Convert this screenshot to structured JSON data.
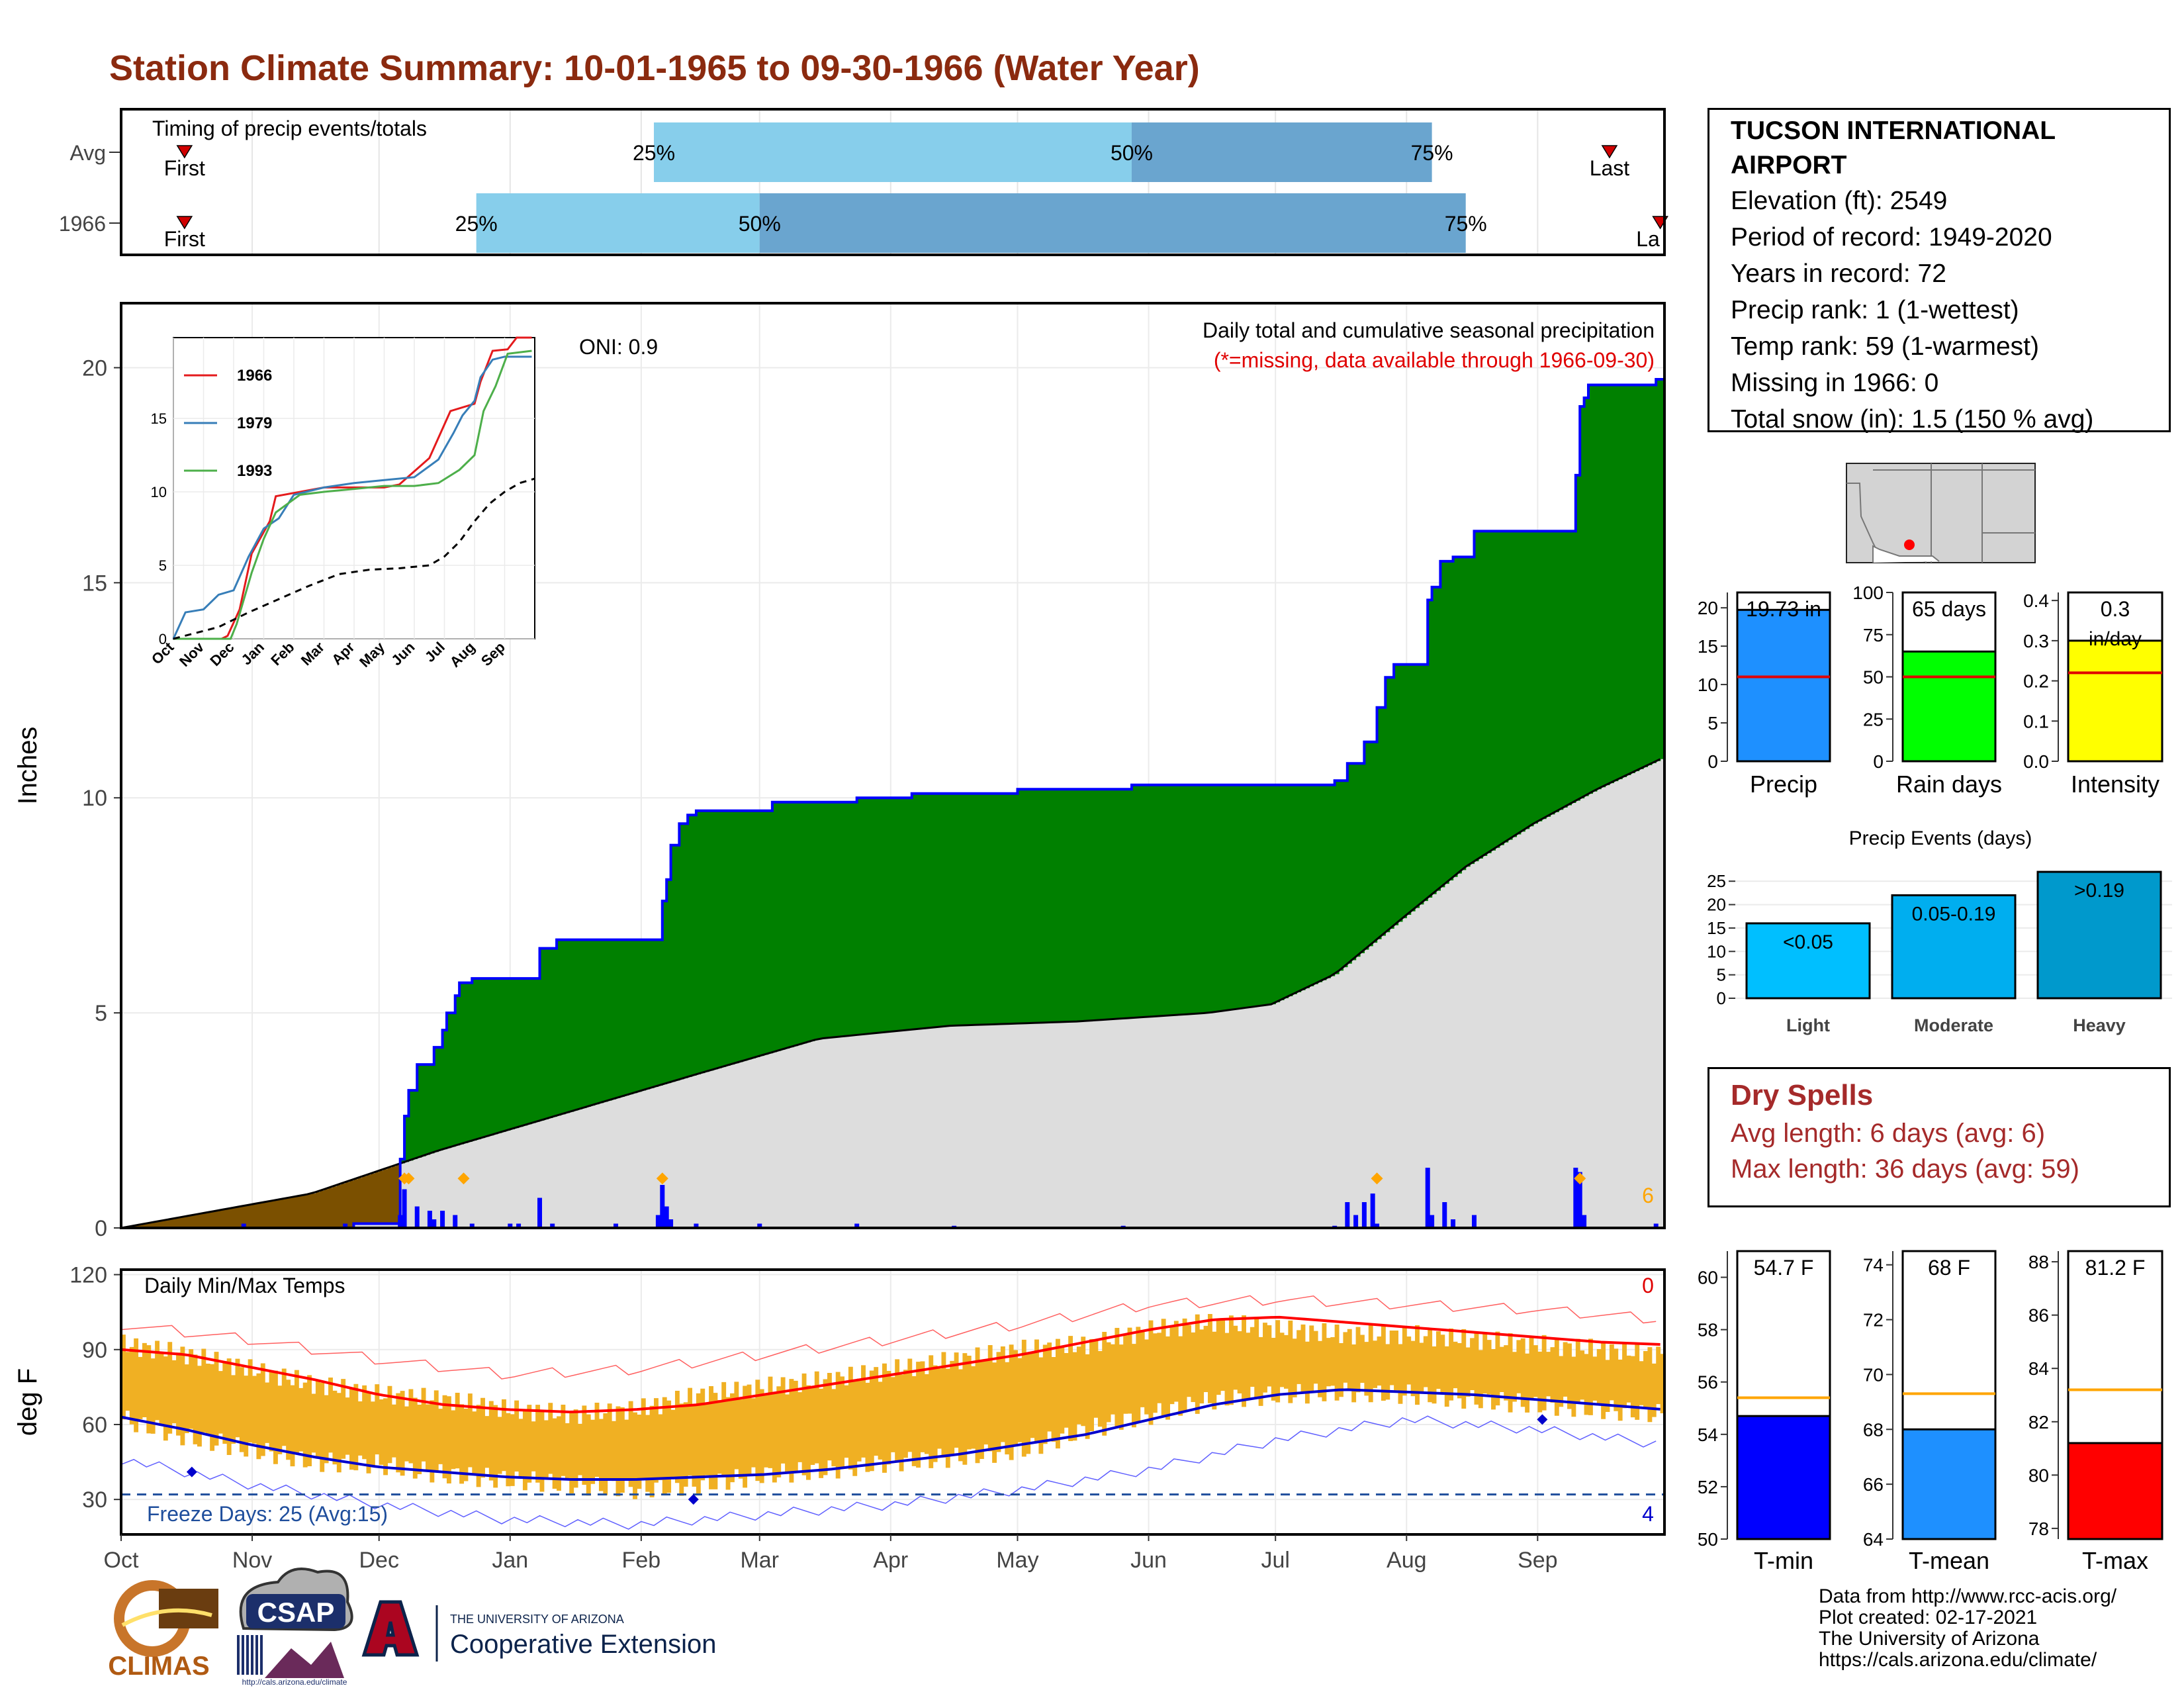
{
  "page_title": "Station Climate Summary: 10-01-1965 to 09-30-1966 (Water Year)",
  "station": {
    "name": "TUCSON INTERNATIONAL AIRPORT",
    "elevation": "Elevation (ft): 2549",
    "period": "Period of record: 1949-2020",
    "years": "Years in record: 72",
    "precip_rank": "Precip rank: 1 (1-wettest)",
    "temp_rank": "Temp rank: 59 (1-warmest)",
    "missing": "Missing in 1966: 0",
    "snow": "Total snow (in): 1.5 (150 % avg)"
  },
  "dry_spells": {
    "title": "Dry Spells",
    "avg": "Avg length: 6 days (avg: 6)",
    "max": "Max length: 36 days (avg: 59)"
  },
  "credits": [
    "Data from http://www.rcc-acis.org/",
    "Plot created: 02-17-2021",
    "The University of Arizona",
    "https://cals.arizona.edu/climate/"
  ],
  "logos": {
    "climas": "CLIMAS",
    "csap": "CSAP",
    "csap_url": "http://cals.arizona.edu/climate",
    "ua_small": "THE UNIVERSITY OF ARIZONA",
    "ua_big": "Cooperative Extension"
  },
  "colors": {
    "title": "#8b2a0f",
    "precip_cum": "#008000",
    "precip_deficit": "#7b5000",
    "avg_cum": "#dddddd",
    "daily_bar": "#0000ff",
    "temp_bar": "#f0b023",
    "tmax": "#ff0000",
    "tmin": "#0000cc",
    "dry": "#a52a2a"
  },
  "chart_data": [
    {
      "id": "timing",
      "type": "bar",
      "title": "Timing of precip events/totals",
      "rows": [
        {
          "label": "Avg",
          "first": "1965-10-16",
          "p25": "1966-02-04",
          "p50": "1966-05-28",
          "p75": "1966-08-07",
          "last": "1966-09-18",
          "first_label": "First",
          "last_label": "Last"
        },
        {
          "label": "1966",
          "first": "1965-10-16",
          "p25": "1965-12-24",
          "p50": "1966-03-01",
          "p75": "1966-08-15",
          "last": "1966-09-30",
          "first_label": "First",
          "last_label": "La"
        }
      ],
      "pct_labels": [
        "25%",
        "50%",
        "75%"
      ]
    },
    {
      "id": "precip",
      "type": "area",
      "title": "Daily total and cumulative seasonal precipitation",
      "subtitle": "(*=missing, data available through 1966-09-30)",
      "ylabel": "Inches",
      "oni": "ONI: 0.9",
      "ylim": [
        0,
        21.5
      ],
      "yticks": [
        0,
        5,
        10,
        15,
        20
      ],
      "xticks": [
        "Oct",
        "Nov",
        "Dec",
        "Jan",
        "Feb",
        "Mar",
        "Apr",
        "May",
        "Jun",
        "Jul",
        "Aug",
        "Sep"
      ],
      "snow_count": "6",
      "series": [
        {
          "name": "1966",
          "x": [
            "1965-10-01",
            "1965-11-25",
            "1965-12-06",
            "1965-12-07",
            "1965-12-08",
            "1965-12-10",
            "1965-12-14",
            "1965-12-16",
            "1965-12-17",
            "1965-12-19",
            "1965-12-20",
            "1965-12-23",
            "1965-12-25",
            "1966-01-08",
            "1966-01-12",
            "1966-02-06",
            "1966-02-07",
            "1966-02-08",
            "1966-02-10",
            "1966-02-12",
            "1966-02-14",
            "1966-02-19",
            "1966-03-04",
            "1966-03-24",
            "1966-04-06",
            "1966-05-01",
            "1966-05-28",
            "1966-07-15",
            "1966-07-18",
            "1966-07-22",
            "1966-07-25",
            "1966-07-27",
            "1966-07-29",
            "1966-08-06",
            "1966-08-07",
            "1966-08-09",
            "1966-08-12",
            "1966-08-17",
            "1966-09-10",
            "1966-09-11",
            "1966-09-12",
            "1966-09-13",
            "1966-09-29"
          ],
          "y": [
            0,
            0.1,
            1.6,
            2.6,
            3.2,
            3.8,
            4.2,
            4.6,
            5,
            5.4,
            5.7,
            5.8,
            5.8,
            6.5,
            6.7,
            7.6,
            8.1,
            8.9,
            9.4,
            9.6,
            9.7,
            9.7,
            9.9,
            10,
            10.1,
            10.2,
            10.3,
            10.4,
            10.8,
            11.3,
            12.1,
            12.8,
            13.1,
            14.6,
            14.9,
            15.5,
            15.6,
            16.2,
            17.5,
            19.1,
            19.3,
            19.6,
            19.73
          ]
        },
        {
          "name": "Average",
          "x": [
            "1965-10-01",
            "1965-11-15",
            "1965-12-15",
            "1966-01-15",
            "1966-02-15",
            "1966-03-15",
            "1966-04-15",
            "1966-05-15",
            "1966-06-15",
            "1966-06-30",
            "1966-07-15",
            "1966-07-31",
            "1966-08-15",
            "1966-08-31",
            "1966-09-15",
            "1966-09-30"
          ],
          "y": [
            0,
            0.8,
            1.8,
            2.7,
            3.6,
            4.4,
            4.7,
            4.8,
            5.0,
            5.2,
            5.9,
            7.2,
            8.4,
            9.4,
            10.2,
            10.9
          ]
        }
      ],
      "daily_precip": {
        "x": [
          "1965-10-30",
          "1965-11-23",
          "1965-12-06",
          "1965-12-07",
          "1965-12-10",
          "1965-12-13",
          "1965-12-14",
          "1965-12-16",
          "1965-12-19",
          "1965-12-23",
          "1966-01-01",
          "1966-01-03",
          "1966-01-08",
          "1966-01-11",
          "1966-01-26",
          "1966-02-05",
          "1966-02-06",
          "1966-02-07",
          "1966-02-08",
          "1966-02-14",
          "1966-03-01",
          "1966-03-24",
          "1966-04-16",
          "1966-05-26",
          "1966-07-15",
          "1966-07-18",
          "1966-07-20",
          "1966-07-22",
          "1966-07-24",
          "1966-07-25",
          "1966-08-06",
          "1966-08-07",
          "1966-08-10",
          "1966-08-12",
          "1966-08-17",
          "1966-09-10",
          "1966-09-11",
          "1966-09-12",
          "1966-09-29"
        ],
        "y": [
          0.1,
          0.1,
          0.3,
          0.9,
          0.5,
          0.4,
          0.2,
          0.4,
          0.3,
          0.1,
          0.1,
          0.1,
          0.7,
          0.1,
          0.1,
          0.3,
          1.0,
          0.5,
          0.2,
          0.1,
          0.1,
          0.1,
          0.05,
          0.05,
          0.05,
          0.6,
          0.3,
          0.6,
          0.8,
          0.1,
          1.4,
          0.3,
          0.6,
          0.2,
          0.3,
          1.4,
          1.3,
          0.3,
          0.1
        ]
      },
      "snow_dates": [
        "1965-12-07",
        "1965-12-08",
        "1965-12-21",
        "1966-02-06",
        "1966-07-25",
        "1966-09-11"
      ]
    },
    {
      "id": "inset",
      "type": "line",
      "xticks": [
        "Oct",
        "Nov",
        "Dec",
        "Jan",
        "Feb",
        "Mar",
        "Apr",
        "May",
        "Jun",
        "Jul",
        "Aug",
        "Sep"
      ],
      "yticks": [
        0,
        5,
        10,
        15
      ],
      "ylim": [
        0,
        20.5
      ],
      "series": [
        {
          "name": "1966",
          "color": "#e41a1c",
          "x": [
            0,
            1.6,
            1.8,
            2.2,
            2.6,
            3.2,
            3.4,
            4.2,
            5,
            7,
            7.5,
            8.5,
            9.2,
            10,
            10.2,
            10.6,
            11.1,
            11.4,
            11.9
          ],
          "y": [
            0,
            0,
            0.2,
            2,
            5.8,
            8,
            9.7,
            10,
            10.3,
            10.3,
            10.5,
            12.3,
            15.5,
            16,
            17.5,
            19.6,
            19.7,
            20.5,
            20.5
          ]
        },
        {
          "name": "1979",
          "color": "#377eb8",
          "x": [
            0,
            0.4,
            1,
            1.5,
            2,
            2.5,
            3,
            3.5,
            4,
            5,
            6,
            7,
            8,
            8.8,
            9.3,
            9.6,
            10,
            10.2,
            10.6,
            11,
            11.9
          ],
          "y": [
            0,
            1.8,
            2,
            3,
            3.3,
            5.6,
            7.5,
            8.2,
            9.8,
            10.3,
            10.6,
            10.8,
            11,
            12.2,
            14,
            15.2,
            16.2,
            17.8,
            19,
            19.2,
            19.2
          ]
        },
        {
          "name": "1993",
          "color": "#4daf4a",
          "x": [
            0,
            1.9,
            2.1,
            2.6,
            3,
            3.4,
            3.8,
            4.2,
            5,
            6,
            7,
            8,
            8.8,
            9.5,
            10,
            10.3,
            10.7,
            11.1,
            11.9
          ],
          "y": [
            0,
            0,
            1,
            4.5,
            6.8,
            8.6,
            9.2,
            9.8,
            10,
            10.2,
            10.4,
            10.4,
            10.6,
            11.5,
            12.5,
            15.5,
            17.2,
            19.4,
            19.6
          ]
        },
        {
          "name": "Avg",
          "color": "#000000",
          "x": [
            0,
            1.5,
            2.5,
            3.5,
            4.5,
            5.5,
            6.5,
            7.5,
            8.5,
            9,
            9.5,
            10,
            10.5,
            11,
            11.5,
            12
          ],
          "y": [
            0,
            0.8,
            1.8,
            2.7,
            3.6,
            4.4,
            4.7,
            4.8,
            5,
            5.6,
            6.6,
            8,
            9.2,
            10,
            10.6,
            10.9
          ]
        }
      ]
    },
    {
      "id": "temps",
      "type": "bar",
      "title": "Daily Min/Max Temps",
      "ylabel": "deg F",
      "ylim": [
        16,
        122
      ],
      "yticks": [
        30,
        60,
        90,
        120
      ],
      "xticks": [
        "Oct",
        "Nov",
        "Dec",
        "Jan",
        "Feb",
        "Mar",
        "Apr",
        "May",
        "Jun",
        "Jul",
        "Aug",
        "Sep"
      ],
      "freeze_label": "Freeze Days: 25 (Avg:15)",
      "hot_count": "0",
      "cold_count": "4",
      "freeze_line": 32,
      "avg_tmax": {
        "x": [
          0,
          0.5,
          1,
          1.5,
          2,
          2.5,
          3,
          3.5,
          4,
          4.5,
          5,
          5.5,
          6,
          6.5,
          7,
          7.5,
          8,
          8.5,
          9,
          9.5,
          10,
          10.5,
          11,
          11.5,
          12
        ],
        "y": [
          90,
          88,
          83,
          78,
          72,
          68,
          66,
          65,
          66,
          68,
          72,
          76,
          80,
          84,
          88,
          93,
          98,
          102,
          103,
          101,
          99,
          97,
          95,
          93,
          92
        ]
      },
      "avg_tmin": {
        "x": [
          0,
          0.5,
          1,
          1.5,
          2,
          2.5,
          3,
          3.5,
          4,
          4.5,
          5,
          5.5,
          6,
          6.5,
          7,
          7.5,
          8,
          8.5,
          9,
          9.5,
          10,
          10.5,
          11,
          11.5,
          12
        ],
        "y": [
          63,
          58,
          52,
          47,
          43,
          41,
          39,
          38,
          38,
          39,
          40,
          42,
          45,
          48,
          52,
          56,
          62,
          68,
          72,
          74,
          73,
          72,
          70,
          68,
          66
        ]
      },
      "record_high": {
        "x": [
          0,
          1,
          2,
          3,
          4,
          5,
          6,
          7,
          8,
          9,
          10,
          11,
          12
        ],
        "y": [
          100,
          94,
          86,
          80,
          82,
          88,
          94,
          100,
          108,
          110,
          108,
          106,
          102
        ]
      },
      "record_low": {
        "x": [
          0,
          1,
          2,
          3,
          4,
          5,
          6,
          7,
          8,
          9,
          10,
          11,
          12
        ],
        "y": [
          46,
          36,
          28,
          22,
          20,
          24,
          28,
          34,
          42,
          54,
          62,
          58,
          52
        ]
      },
      "obs_range": {
        "x": [
          0,
          0.5,
          1,
          1.5,
          2,
          2.5,
          3,
          3.5,
          4,
          4.5,
          5,
          5.5,
          6,
          6.5,
          7,
          7.5,
          8,
          8.5,
          9,
          9.5,
          10,
          10.5,
          11,
          11.5,
          12
        ],
        "lo": [
          62,
          55,
          50,
          45,
          44,
          40,
          38,
          36,
          34,
          36,
          40,
          42,
          45,
          47,
          50,
          58,
          64,
          70,
          72,
          73,
          72,
          70,
          68,
          66,
          64
        ],
        "hi": [
          92,
          88,
          82,
          76,
          72,
          70,
          66,
          64,
          66,
          72,
          75,
          78,
          82,
          86,
          90,
          92,
          98,
          101,
          98,
          96,
          96,
          94,
          92,
          90,
          88
        ]
      },
      "cold_marks": {
        "x": [
          0.55,
          4.45,
          11.05
        ],
        "y": [
          41,
          30,
          62
        ]
      }
    },
    {
      "id": "precip_total",
      "type": "bar",
      "label": "Precip",
      "value": 19.73,
      "value_label": "19.73 in",
      "avg": 11.0,
      "ylim": [
        0,
        22
      ],
      "yticks": [
        0,
        5,
        10,
        15,
        20
      ],
      "color": "#1e90ff"
    },
    {
      "id": "rain_days",
      "type": "bar",
      "label": "Rain days",
      "value": 65,
      "value_label": "65 days",
      "avg": 50,
      "ylim": [
        0,
        100
      ],
      "yticks": [
        0,
        25,
        50,
        75,
        100
      ],
      "color": "#00ff00"
    },
    {
      "id": "intensity",
      "type": "bar",
      "label": "Intensity",
      "value": 0.3,
      "value_label": "0.3",
      "unit_label": "in/day",
      "avg": 0.22,
      "ylim": [
        0,
        0.42
      ],
      "yticks": [
        0.0,
        0.1,
        0.2,
        0.3,
        0.4
      ],
      "color": "#ffff00"
    },
    {
      "id": "events",
      "type": "bar",
      "title": "Precip Events (days)",
      "categories": [
        "Light",
        "Moderate",
        "Heavy"
      ],
      "values": [
        16,
        22,
        27
      ],
      "labels": [
        "<0.05",
        "0.05-0.19",
        ">0.19"
      ],
      "ylim": [
        0,
        28
      ],
      "yticks": [
        0,
        5,
        10,
        15,
        20,
        25
      ],
      "colors": [
        "#00bfff",
        "#00aeef",
        "#0099cc"
      ]
    },
    {
      "id": "tmin_box",
      "type": "bar",
      "label": "T-min",
      "value": 54.7,
      "value_label": "54.7 F",
      "avg": 55.4,
      "ylim": [
        50,
        61
      ],
      "yticks": [
        50,
        52,
        54,
        56,
        58,
        60
      ],
      "color": "#0000ff"
    },
    {
      "id": "tmean_box",
      "type": "bar",
      "label": "T-mean",
      "value": 68,
      "value_label": "68 F",
      "avg": 69.3,
      "ylim": [
        64,
        74.5
      ],
      "yticks": [
        64,
        66,
        68,
        70,
        72,
        74
      ],
      "color": "#1e90ff"
    },
    {
      "id": "tmax_box",
      "type": "bar",
      "label": "T-max",
      "value": 81.2,
      "value_label": "81.2 F",
      "avg": 83.2,
      "ylim": [
        77.6,
        88.4
      ],
      "yticks": [
        78,
        80,
        82,
        84,
        86,
        88
      ],
      "color": "#ff0000"
    }
  ]
}
